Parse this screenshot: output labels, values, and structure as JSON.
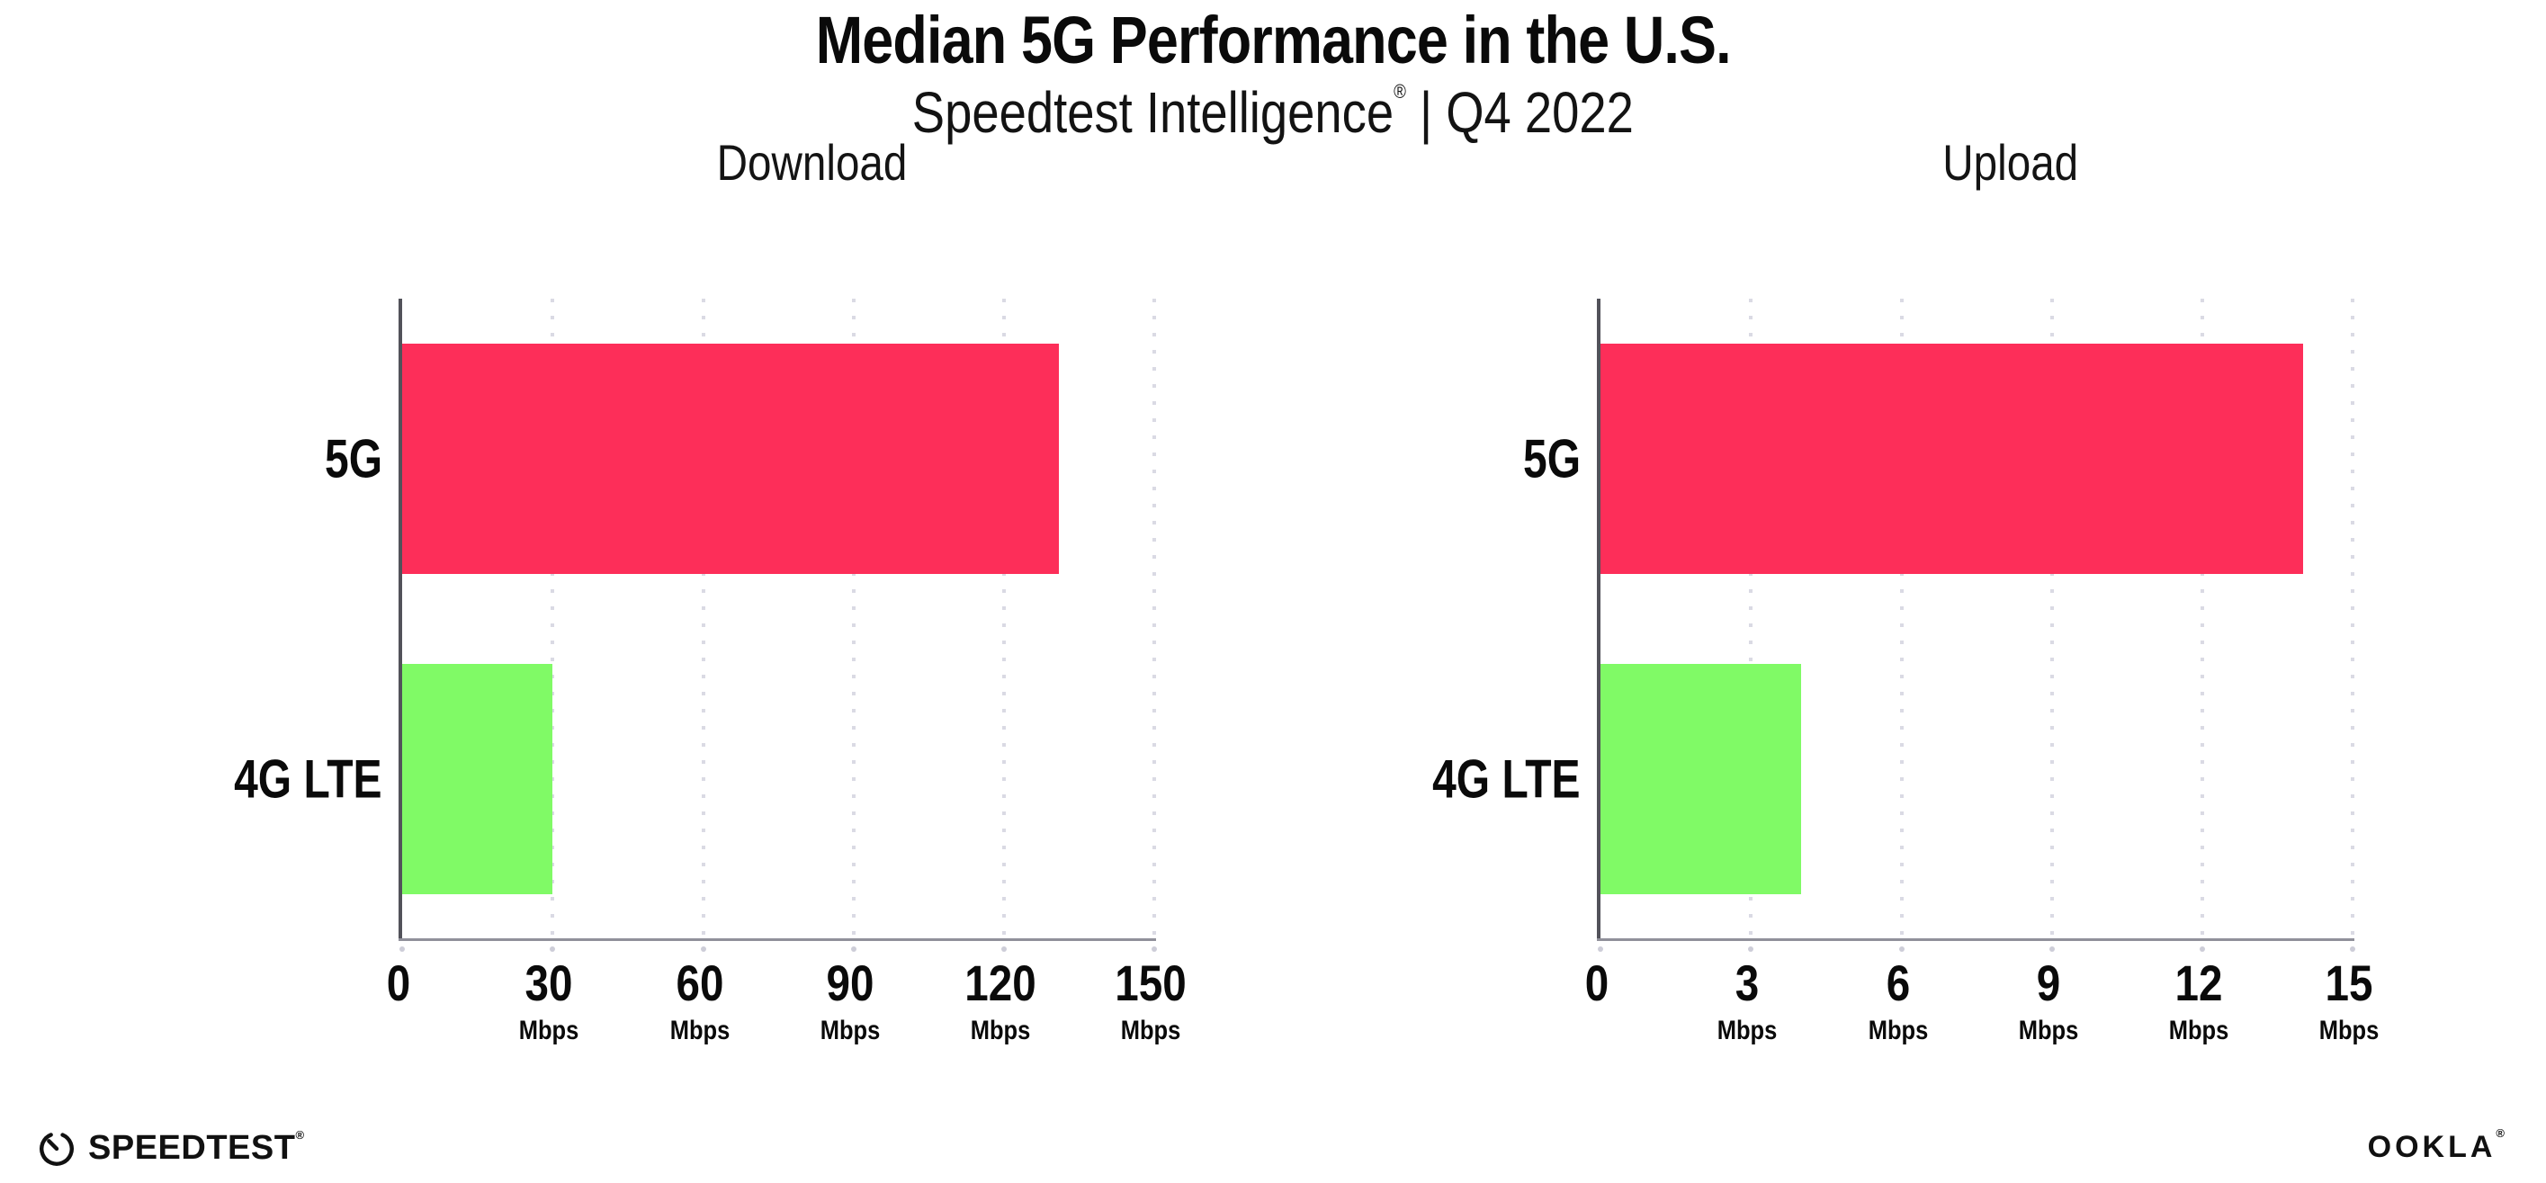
{
  "header": {
    "title": "Median 5G Performance in the U.S.",
    "subtitle_brand": "Speedtest Intelligence",
    "subtitle_reg": "®",
    "subtitle_rest": " | Q4 2022"
  },
  "colors": {
    "bar_5g": "#fd2e59",
    "bar_4g_lte": "#80fa66",
    "left_axis": "#52525a",
    "bottom_axis": "#90909a",
    "gridline": "#dadae4",
    "background": "#ffffff"
  },
  "chart_data": [
    {
      "type": "bar",
      "orientation": "horizontal",
      "title": "Download",
      "categories": [
        "5G",
        "4G LTE"
      ],
      "values": [
        131,
        30
      ],
      "unit": "Mbps",
      "bar_colors": [
        "#fd2e59",
        "#80fa66"
      ],
      "xlabel": "",
      "ylabel": "",
      "xlim": [
        0,
        165
      ],
      "ticks": [
        {
          "value": 0,
          "label": "0",
          "unit": ""
        },
        {
          "value": 30,
          "label": "30",
          "unit": "Mbps"
        },
        {
          "value": 60,
          "label": "60",
          "unit": "Mbps"
        },
        {
          "value": 90,
          "label": "90",
          "unit": "Mbps"
        },
        {
          "value": 120,
          "label": "120",
          "unit": "Mbps"
        },
        {
          "value": 150,
          "label": "150",
          "unit": "Mbps"
        }
      ],
      "grid": "vertical-dotted",
      "legend": "none"
    },
    {
      "type": "bar",
      "orientation": "horizontal",
      "title": "Upload",
      "categories": [
        "5G",
        "4G LTE"
      ],
      "values": [
        14,
        4
      ],
      "unit": "Mbps",
      "bar_colors": [
        "#fd2e59",
        "#80fa66"
      ],
      "xlabel": "",
      "ylabel": "",
      "xlim": [
        0,
        16.5
      ],
      "ticks": [
        {
          "value": 0,
          "label": "0",
          "unit": ""
        },
        {
          "value": 3,
          "label": "3",
          "unit": "Mbps"
        },
        {
          "value": 6,
          "label": "6",
          "unit": "Mbps"
        },
        {
          "value": 9,
          "label": "9",
          "unit": "Mbps"
        },
        {
          "value": 12,
          "label": "12",
          "unit": "Mbps"
        },
        {
          "value": 15,
          "label": "15",
          "unit": "Mbps"
        }
      ],
      "grid": "vertical-dotted",
      "legend": "none"
    }
  ],
  "footer": {
    "speedtest_label": "SPEEDTEST",
    "speedtest_mark": "®",
    "ookla_label": "OOKLA",
    "ookla_mark": "®"
  }
}
